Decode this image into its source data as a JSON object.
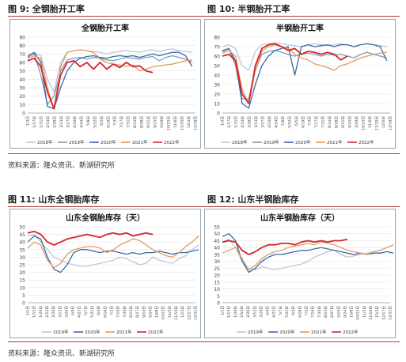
{
  "figures": [
    {
      "label": "图 9:",
      "title": "全钢胎开工率"
    },
    {
      "label": "图 10:",
      "title": "半钢胎开工率"
    },
    {
      "label": "图 11:",
      "title": "山东全钢胎库存"
    },
    {
      "label": "图 12:",
      "title": "山东半钢胎库存"
    }
  ],
  "source_text": "资料来源：隆众资讯、新湖研究所",
  "colors": {
    "y2018": "#b8c8dc",
    "y2019": "#7f9bbd",
    "y2020": "#3a6aa6",
    "y2021": "#e39a5c",
    "y2022": "#d62428"
  },
  "chart_data": [
    {
      "type": "line",
      "title": "全钢胎开工率",
      "ylim": [
        0,
        90
      ],
      "yticks": [
        0,
        10,
        20,
        30,
        40,
        50,
        60,
        70,
        80,
        90
      ],
      "x_ticks": [
        "1/3日",
        "1/17日",
        "1/31日",
        "2/14日",
        "2/28日",
        "3/13日",
        "3/27日",
        "4/10日",
        "4/24日",
        "5/8日",
        "5/22日",
        "6/5日",
        "6/19日",
        "7/3日",
        "7/17日",
        "7/31日",
        "8/14日",
        "8/28日",
        "9/11日",
        "9/25日",
        "10/9日",
        "10/23日",
        "11/6日",
        "11/20日",
        "12/4日",
        "12/18日"
      ],
      "legend": "bottom",
      "series": [
        {
          "name": "2018年",
          "color": "#b8c8dc",
          "values": [
            70,
            71,
            68,
            40,
            25,
            60,
            72,
            74,
            75,
            74,
            73,
            72,
            70,
            72,
            73,
            74,
            73,
            72,
            74,
            75,
            73,
            75,
            76,
            74,
            73,
            72
          ]
        },
        {
          "name": "2019年",
          "color": "#7f9bbd",
          "values": [
            68,
            70,
            45,
            10,
            20,
            50,
            63,
            65,
            66,
            64,
            66,
            65,
            63,
            62,
            64,
            66,
            65,
            64,
            66,
            67,
            62,
            66,
            68,
            66,
            64,
            60
          ]
        },
        {
          "name": "2020年",
          "color": "#3a6aa6",
          "values": [
            66,
            72,
            60,
            8,
            5,
            30,
            50,
            60,
            65,
            67,
            68,
            66,
            65,
            67,
            68,
            67,
            68,
            66,
            68,
            70,
            68,
            70,
            72,
            72,
            68,
            55
          ]
        },
        {
          "name": "2021年",
          "color": "#e39a5c",
          "values": [
            65,
            68,
            65,
            30,
            5,
            55,
            72,
            74,
            75,
            74,
            72,
            64,
            60,
            58,
            57,
            55,
            57,
            50,
            52,
            55,
            56,
            57,
            58,
            60,
            62,
            63
          ]
        },
        {
          "name": "2022年",
          "color": "#d62428",
          "values": [
            62,
            65,
            55,
            25,
            5,
            45,
            60,
            62,
            55,
            60,
            52,
            60,
            52,
            58,
            54,
            60,
            55,
            56,
            50,
            48
          ]
        }
      ]
    },
    {
      "type": "line",
      "title": "半钢胎开工率",
      "ylim": [
        0,
        80
      ],
      "yticks": [
        0,
        10,
        20,
        30,
        40,
        50,
        60,
        70,
        80
      ],
      "x_ticks": [
        "1/3日",
        "1/17日",
        "1/31日",
        "2/14日",
        "2/28日",
        "3/13日",
        "3/27日",
        "4/10日",
        "4/24日",
        "5/8日",
        "5/22日",
        "6/5日",
        "6/19日",
        "7/3日",
        "7/17日",
        "7/31日",
        "8/14日",
        "8/28日",
        "9/11日",
        "9/25日",
        "10/9日",
        "10/23日",
        "11/6日",
        "11/20日",
        "12/4日",
        "12/18日"
      ],
      "legend": "bottom",
      "series": [
        {
          "name": "2018年",
          "color": "#b8c8dc",
          "values": [
            70,
            72,
            68,
            50,
            45,
            65,
            72,
            73,
            74,
            73,
            72,
            71,
            70,
            72,
            73,
            72,
            71,
            72,
            73,
            72,
            70,
            72,
            73,
            72,
            71,
            70
          ]
        },
        {
          "name": "2019年",
          "color": "#7f9bbd",
          "values": [
            66,
            68,
            50,
            15,
            15,
            45,
            62,
            65,
            66,
            64,
            62,
            60,
            62,
            63,
            62,
            60,
            62,
            61,
            62,
            60,
            58,
            62,
            64,
            62,
            60,
            58
          ]
        },
        {
          "name": "2020年",
          "color": "#3a6aa6",
          "values": [
            65,
            68,
            55,
            10,
            5,
            30,
            50,
            60,
            66,
            68,
            70,
            40,
            70,
            72,
            70,
            71,
            72,
            70,
            72,
            72,
            70,
            72,
            73,
            72,
            70,
            55
          ]
        },
        {
          "name": "2021年",
          "color": "#e39a5c",
          "values": [
            63,
            66,
            60,
            25,
            10,
            45,
            65,
            70,
            72,
            70,
            68,
            62,
            58,
            56,
            52,
            50,
            48,
            45,
            50,
            52,
            55,
            58,
            60,
            62,
            63,
            64
          ]
        },
        {
          "name": "2022年",
          "color": "#d62428",
          "values": [
            60,
            62,
            55,
            20,
            10,
            50,
            68,
            72,
            73,
            70,
            66,
            68,
            62,
            65,
            64,
            62,
            64,
            62,
            56,
            60
          ]
        }
      ]
    },
    {
      "type": "line",
      "title": "山东全钢胎库存（天）",
      "ylim": [
        0,
        50
      ],
      "yticks": [
        0,
        5,
        10,
        15,
        20,
        25,
        30,
        35,
        40,
        45,
        50
      ],
      "x_ticks": [
        "1/1日",
        "1/15日",
        "1/29日",
        "2/12日",
        "2/26日",
        "3/12日",
        "3/26日",
        "4/9日",
        "4/23日",
        "5/7日",
        "5/21日",
        "6/4日",
        "6/18日",
        "7/2日",
        "7/16日",
        "7/30日",
        "8/13日",
        "8/27日",
        "9/10日",
        "9/24日",
        "10/8日",
        "10/22日",
        "11/5日",
        "11/19日",
        "12/3日",
        "12/17日",
        "12/31日"
      ],
      "legend": "bottom",
      "series": [
        {
          "name": "2019年",
          "color": "#b8c8dc",
          "values": [
            44,
            45,
            40,
            35,
            30,
            28,
            26,
            25,
            24,
            24,
            25,
            26,
            27,
            28,
            30,
            29,
            27,
            25,
            26,
            30,
            28,
            27,
            26,
            29,
            31,
            35,
            38
          ]
        },
        {
          "name": "2020年",
          "color": "#3a6aa6",
          "values": [
            40,
            44,
            42,
            30,
            22,
            20,
            25,
            33,
            35,
            35,
            34,
            33,
            34,
            34,
            33,
            32,
            33,
            32,
            33,
            33,
            34,
            33,
            32,
            33,
            33,
            34,
            35
          ]
        },
        {
          "name": "2021年",
          "color": "#e39a5c",
          "values": [
            36,
            40,
            38,
            28,
            23,
            26,
            32,
            35,
            36,
            37,
            37,
            36,
            33,
            35,
            38,
            40,
            42,
            41,
            38,
            35,
            33,
            31,
            30,
            33,
            37,
            40,
            44
          ]
        },
        {
          "name": "2022年",
          "color": "#d62428",
          "values": [
            46,
            47,
            45,
            40,
            38,
            40,
            42,
            43,
            44,
            45,
            44,
            43,
            45,
            46,
            45,
            46,
            44,
            45,
            46,
            45
          ]
        }
      ]
    },
    {
      "type": "line",
      "title": "山东半钢胎库存（天）",
      "ylim": [
        0,
        55
      ],
      "yticks": [
        0,
        5,
        10,
        15,
        20,
        25,
        30,
        35,
        40,
        45,
        50,
        55
      ],
      "x_ticks": [
        "1/1日",
        "1/15日",
        "1/29日",
        "2/12日",
        "2/26日",
        "3/12日",
        "3/26日",
        "4/9日",
        "4/23日",
        "5/7日",
        "5/21日",
        "6/4日",
        "6/18日",
        "7/2日",
        "7/16日",
        "7/30日",
        "8/13日",
        "8/27日",
        "9/10日",
        "9/24日",
        "10/8日",
        "10/22日",
        "11/5日",
        "11/19日",
        "12/3日",
        "12/17日",
        "12/31日"
      ],
      "legend": "bottom",
      "series": [
        {
          "name": "2019年",
          "color": "#b8c8dc",
          "values": [
            44,
            46,
            40,
            30,
            24,
            24,
            26,
            25,
            24,
            25,
            26,
            27,
            28,
            30,
            33,
            35,
            37,
            38,
            35,
            33,
            34,
            35,
            36,
            37,
            38,
            40,
            42
          ]
        },
        {
          "name": "2020年",
          "color": "#3a6aa6",
          "values": [
            48,
            50,
            45,
            30,
            22,
            25,
            30,
            33,
            35,
            35,
            36,
            37,
            38,
            38,
            39,
            40,
            39,
            38,
            37,
            36,
            35,
            36,
            35,
            36,
            36,
            37,
            36
          ]
        },
        {
          "name": "2021年",
          "color": "#e39a5c",
          "values": [
            36,
            38,
            40,
            32,
            24,
            27,
            32,
            35,
            37,
            38,
            40,
            41,
            42,
            43,
            42,
            44,
            43,
            42,
            40,
            38,
            37,
            36,
            35,
            37,
            38,
            40,
            42
          ]
        },
        {
          "name": "2022年",
          "color": "#d62428",
          "values": [
            44,
            45,
            44,
            38,
            35,
            37,
            40,
            42,
            42,
            43,
            43,
            42,
            44,
            45,
            44,
            45,
            44,
            45,
            45,
            46
          ]
        }
      ]
    }
  ]
}
